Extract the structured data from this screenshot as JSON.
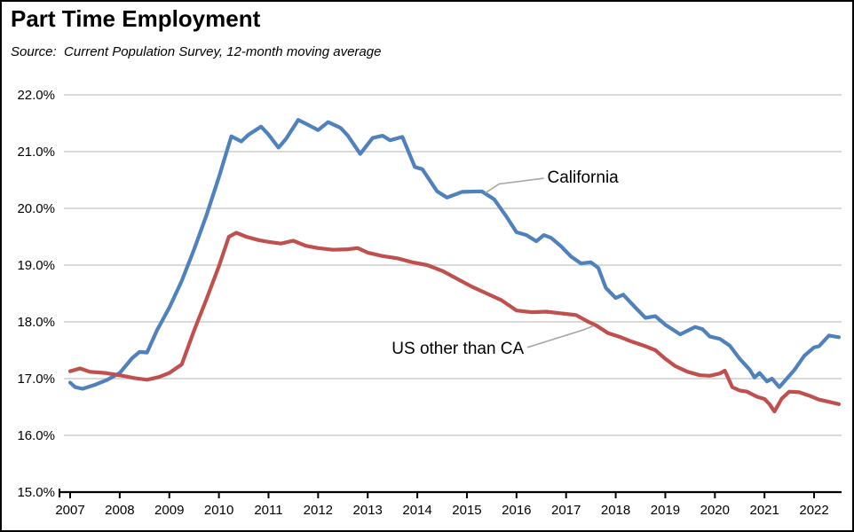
{
  "header": {
    "title": "Part Time Employment",
    "source_note": "Source:  Current Population Survey, 12-month moving average"
  },
  "colors": {
    "california_line": "#4F81BD",
    "us_other_line": "#C0504D",
    "gridline": "#D9D9D9",
    "axis": "#000000",
    "leader_line": "#A6A6A6",
    "background": "#FFFFFF",
    "border": "#000000"
  },
  "chart_data": {
    "type": "line",
    "title": "Part Time Employment",
    "subtitle": "Source:  Current Population Survey, 12-month moving average",
    "xlabel": "",
    "ylabel": "",
    "grid": "horizontal",
    "legend_position": "inline-annotations",
    "y_axis": {
      "min": 15.0,
      "max": 22.0,
      "tick_values": [
        22.0,
        21.0,
        20.0,
        19.0,
        18.0,
        17.0,
        16.0,
        15.0
      ],
      "tick_labels": [
        "22.0%",
        "21.0%",
        "20.0%",
        "19.0%",
        "18.0%",
        "17.0%",
        "16.0%",
        "15.0%"
      ]
    },
    "x_axis": {
      "min": 2007.0,
      "max": 2022.55,
      "tick_values": [
        2007,
        2008,
        2009,
        2010,
        2011,
        2012,
        2013,
        2014,
        2015,
        2016,
        2017,
        2018,
        2019,
        2020,
        2021,
        2022
      ],
      "tick_labels": [
        "2007",
        "2008",
        "2009",
        "2010",
        "2011",
        "2012",
        "2013",
        "2014",
        "2015",
        "2016",
        "2017",
        "2018",
        "2019",
        "2020",
        "2021",
        "2022"
      ]
    },
    "series": [
      {
        "name": "California",
        "color": "#4F81BD",
        "points": [
          [
            2007.0,
            16.93
          ],
          [
            2007.1,
            16.85
          ],
          [
            2007.25,
            16.82
          ],
          [
            2007.5,
            16.89
          ],
          [
            2007.75,
            16.98
          ],
          [
            2008.0,
            17.1
          ],
          [
            2008.25,
            17.36
          ],
          [
            2008.4,
            17.47
          ],
          [
            2008.55,
            17.46
          ],
          [
            2008.75,
            17.85
          ],
          [
            2009.0,
            18.25
          ],
          [
            2009.25,
            18.72
          ],
          [
            2009.5,
            19.28
          ],
          [
            2009.75,
            19.88
          ],
          [
            2010.0,
            20.55
          ],
          [
            2010.25,
            21.27
          ],
          [
            2010.45,
            21.18
          ],
          [
            2010.6,
            21.3
          ],
          [
            2010.85,
            21.44
          ],
          [
            2011.0,
            21.3
          ],
          [
            2011.2,
            21.07
          ],
          [
            2011.35,
            21.22
          ],
          [
            2011.6,
            21.56
          ],
          [
            2011.8,
            21.47
          ],
          [
            2012.0,
            21.38
          ],
          [
            2012.2,
            21.52
          ],
          [
            2012.45,
            21.42
          ],
          [
            2012.6,
            21.28
          ],
          [
            2012.85,
            20.96
          ],
          [
            2013.1,
            21.24
          ],
          [
            2013.3,
            21.28
          ],
          [
            2013.45,
            21.2
          ],
          [
            2013.7,
            21.26
          ],
          [
            2013.95,
            20.73
          ],
          [
            2014.1,
            20.69
          ],
          [
            2014.4,
            20.3
          ],
          [
            2014.6,
            20.19
          ],
          [
            2014.9,
            20.29
          ],
          [
            2015.3,
            20.3
          ],
          [
            2015.55,
            20.16
          ],
          [
            2015.8,
            19.85
          ],
          [
            2016.0,
            19.58
          ],
          [
            2016.2,
            19.53
          ],
          [
            2016.4,
            19.42
          ],
          [
            2016.55,
            19.53
          ],
          [
            2016.7,
            19.48
          ],
          [
            2016.9,
            19.33
          ],
          [
            2017.1,
            19.15
          ],
          [
            2017.3,
            19.03
          ],
          [
            2017.5,
            19.05
          ],
          [
            2017.65,
            18.95
          ],
          [
            2017.8,
            18.6
          ],
          [
            2018.0,
            18.42
          ],
          [
            2018.15,
            18.48
          ],
          [
            2018.4,
            18.25
          ],
          [
            2018.6,
            18.07
          ],
          [
            2018.8,
            18.1
          ],
          [
            2019.0,
            17.95
          ],
          [
            2019.3,
            17.78
          ],
          [
            2019.6,
            17.91
          ],
          [
            2019.75,
            17.87
          ],
          [
            2019.9,
            17.74
          ],
          [
            2020.1,
            17.7
          ],
          [
            2020.3,
            17.58
          ],
          [
            2020.5,
            17.35
          ],
          [
            2020.7,
            17.16
          ],
          [
            2020.8,
            17.02
          ],
          [
            2020.9,
            17.1
          ],
          [
            2021.05,
            16.95
          ],
          [
            2021.15,
            17.0
          ],
          [
            2021.3,
            16.85
          ],
          [
            2021.45,
            17.0
          ],
          [
            2021.6,
            17.15
          ],
          [
            2021.8,
            17.4
          ],
          [
            2022.0,
            17.55
          ],
          [
            2022.1,
            17.57
          ],
          [
            2022.3,
            17.76
          ],
          [
            2022.5,
            17.73
          ]
        ]
      },
      {
        "name": "US other than CA",
        "color": "#C0504D",
        "points": [
          [
            2007.0,
            17.13
          ],
          [
            2007.2,
            17.18
          ],
          [
            2007.4,
            17.12
          ],
          [
            2007.7,
            17.1
          ],
          [
            2008.0,
            17.06
          ],
          [
            2008.3,
            17.01
          ],
          [
            2008.55,
            16.98
          ],
          [
            2008.8,
            17.03
          ],
          [
            2009.0,
            17.1
          ],
          [
            2009.25,
            17.25
          ],
          [
            2009.5,
            17.85
          ],
          [
            2009.75,
            18.4
          ],
          [
            2010.0,
            18.98
          ],
          [
            2010.2,
            19.5
          ],
          [
            2010.35,
            19.57
          ],
          [
            2010.55,
            19.5
          ],
          [
            2010.8,
            19.44
          ],
          [
            2011.0,
            19.41
          ],
          [
            2011.25,
            19.38
          ],
          [
            2011.5,
            19.43
          ],
          [
            2011.75,
            19.34
          ],
          [
            2012.0,
            19.3
          ],
          [
            2012.3,
            19.27
          ],
          [
            2012.6,
            19.28
          ],
          [
            2012.8,
            19.3
          ],
          [
            2013.0,
            19.22
          ],
          [
            2013.3,
            19.16
          ],
          [
            2013.6,
            19.12
          ],
          [
            2013.9,
            19.05
          ],
          [
            2014.2,
            19.0
          ],
          [
            2014.5,
            18.9
          ],
          [
            2014.8,
            18.76
          ],
          [
            2015.1,
            18.62
          ],
          [
            2015.4,
            18.5
          ],
          [
            2015.7,
            18.38
          ],
          [
            2016.0,
            18.2
          ],
          [
            2016.3,
            18.17
          ],
          [
            2016.6,
            18.18
          ],
          [
            2016.9,
            18.15
          ],
          [
            2017.2,
            18.12
          ],
          [
            2017.45,
            18.0
          ],
          [
            2017.6,
            17.94
          ],
          [
            2017.85,
            17.8
          ],
          [
            2018.1,
            17.73
          ],
          [
            2018.3,
            17.66
          ],
          [
            2018.6,
            17.57
          ],
          [
            2018.8,
            17.5
          ],
          [
            2019.0,
            17.35
          ],
          [
            2019.2,
            17.22
          ],
          [
            2019.45,
            17.12
          ],
          [
            2019.7,
            17.06
          ],
          [
            2019.9,
            17.05
          ],
          [
            2020.1,
            17.09
          ],
          [
            2020.2,
            17.14
          ],
          [
            2020.35,
            16.85
          ],
          [
            2020.5,
            16.79
          ],
          [
            2020.65,
            16.77
          ],
          [
            2020.85,
            16.68
          ],
          [
            2021.0,
            16.64
          ],
          [
            2021.1,
            16.55
          ],
          [
            2021.2,
            16.42
          ],
          [
            2021.35,
            16.65
          ],
          [
            2021.5,
            16.77
          ],
          [
            2021.7,
            16.76
          ],
          [
            2021.9,
            16.7
          ],
          [
            2022.1,
            16.63
          ],
          [
            2022.3,
            16.59
          ],
          [
            2022.5,
            16.55
          ]
        ]
      }
    ],
    "annotations": [
      {
        "text": "California",
        "series": "California",
        "align": "left",
        "label_pos": [
          2016.62,
          20.55
        ],
        "leader": [
          [
            2016.55,
            20.53
          ],
          [
            2015.65,
            20.43
          ],
          [
            2015.37,
            20.27
          ]
        ]
      },
      {
        "text": "US other than CA",
        "series": "US other than CA",
        "align": "right",
        "label_pos": [
          2016.15,
          17.53
        ],
        "leader": [
          [
            2016.22,
            17.55
          ],
          [
            2017.35,
            17.86
          ],
          [
            2017.55,
            17.93
          ]
        ]
      }
    ]
  }
}
